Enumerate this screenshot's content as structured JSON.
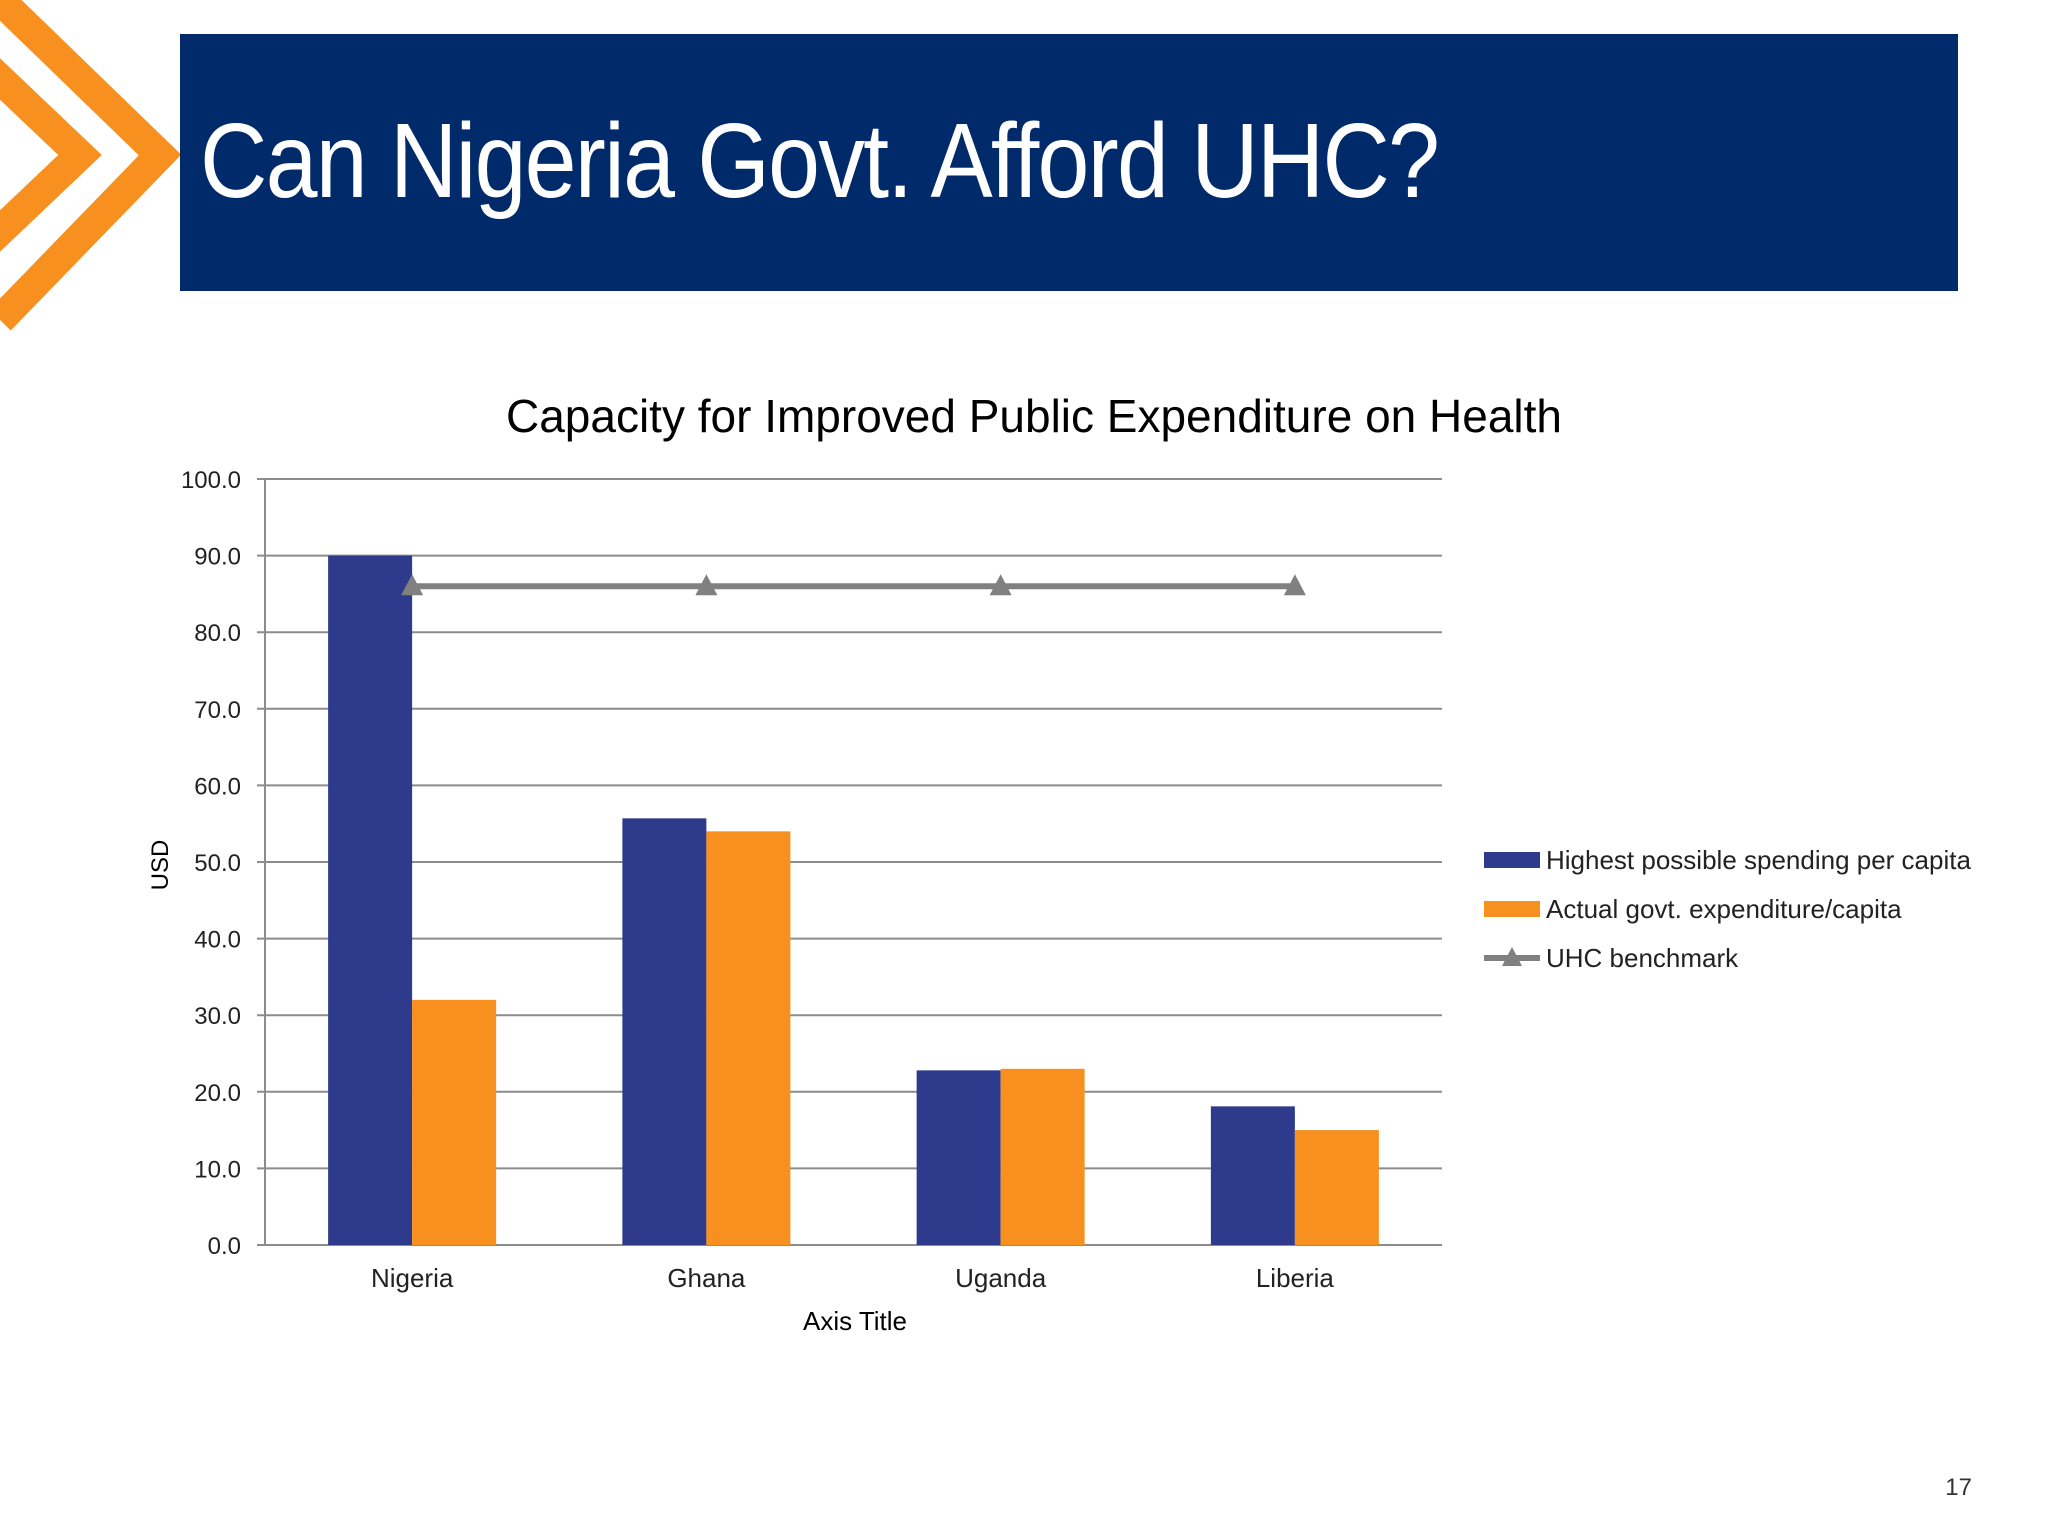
{
  "slide": {
    "title": "Can Nigeria Govt. Afford UHC?",
    "page_number": "17"
  },
  "colors": {
    "header_bg": "#012a6b",
    "accent": "#f7901e"
  },
  "chart_data": {
    "type": "bar",
    "title": "Capacity for Improved Public Expenditure on Health",
    "xlabel": "Axis Title",
    "ylabel": "USD",
    "ylim": [
      0,
      100
    ],
    "yticks": [
      "0.0",
      "10.0",
      "20.0",
      "30.0",
      "40.0",
      "50.0",
      "60.0",
      "70.0",
      "80.0",
      "90.0",
      "100.0"
    ],
    "grid": true,
    "legend_position": "right",
    "categories": [
      "Nigeria",
      "Ghana",
      "Uganda",
      "Liberia"
    ],
    "series": [
      {
        "name": "Highest possible spending per capita",
        "type": "bar",
        "color": "#2e3a8c",
        "values": [
          90.0,
          55.7,
          22.8,
          18.1
        ]
      },
      {
        "name": "Actual govt. expenditure/capita",
        "type": "bar",
        "color": "#f7901e",
        "values": [
          32.0,
          54.0,
          23.0,
          15.0
        ]
      },
      {
        "name": "UHC benchmark",
        "type": "line",
        "marker": "triangle",
        "color": "#808080",
        "values": [
          86.0,
          86.0,
          86.0,
          86.0
        ]
      }
    ]
  }
}
